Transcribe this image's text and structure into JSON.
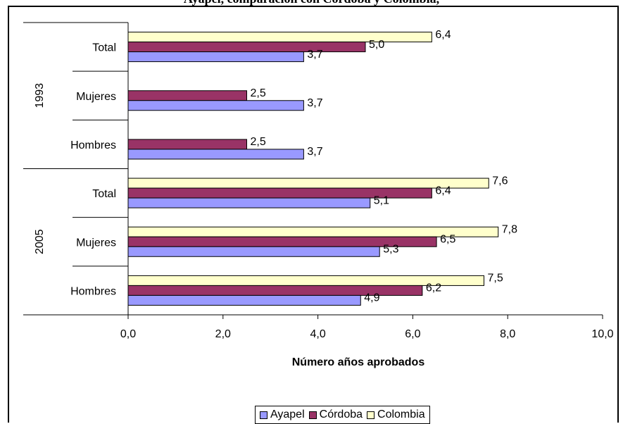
{
  "title_partial": "Ayapel, comparación con Córdoba y Colombia,",
  "chart_data": {
    "type": "bar",
    "orientation": "horizontal",
    "xlabel": "Número años aprobados",
    "xlim": [
      0,
      10
    ],
    "xticks": [
      "0,0",
      "2,0",
      "4,0",
      "6,0",
      "8,0",
      "10,0"
    ],
    "groups": [
      {
        "name": "1993",
        "categories": [
          "Total",
          "Mujeres",
          "Hombres"
        ]
      },
      {
        "name": "2005",
        "categories": [
          "Total",
          "Mujeres",
          "Hombres"
        ]
      }
    ],
    "series": [
      {
        "name": "Ayapel",
        "color": "#9999ff",
        "values": [
          3.7,
          3.7,
          3.7,
          5.1,
          5.3,
          4.9
        ],
        "labels": [
          "3,7",
          "3,7",
          "3,7",
          "5,1",
          "5,3",
          "4,9"
        ]
      },
      {
        "name": "Córdoba",
        "color": "#993366",
        "values": [
          5.0,
          2.5,
          2.5,
          6.4,
          6.5,
          6.2
        ],
        "labels": [
          "5,0",
          "2,5",
          "2,5",
          "6,4",
          "6,5",
          "6,2"
        ]
      },
      {
        "name": "Colombia",
        "color": "#ffffcc",
        "values": [
          6.4,
          null,
          null,
          7.6,
          7.8,
          7.5
        ],
        "labels": [
          "6,4",
          "",
          "",
          "7,6",
          "7,8",
          "7,5"
        ]
      }
    ],
    "legend_position": "bottom",
    "grid": false
  }
}
